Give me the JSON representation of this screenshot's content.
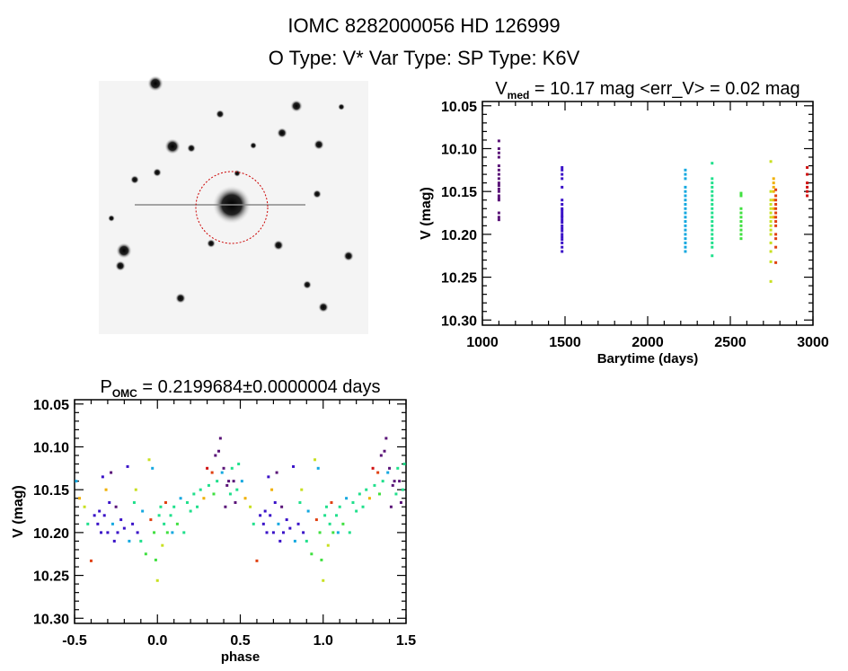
{
  "header": {
    "title": "IOMC 8282000056    HD 126999",
    "subtitle": "O Type: V*   Var Type:    SP Type: K6V"
  },
  "chart_data": [
    {
      "type": "scatter",
      "title_main": "V",
      "title_sub": "med",
      "title_rest": " = 10.17 mag <err_V> = 0.02 mag",
      "xlabel": "Barytime (days)",
      "ylabel": "V (mag)",
      "xlim": [
        1000,
        3000
      ],
      "ylim": [
        10.045,
        10.306
      ],
      "y_inverted": true,
      "xticks": [
        "1000",
        "1500",
        "2000",
        "2500",
        "3000"
      ],
      "yticks": [
        "10.05",
        "10.10",
        "10.15",
        "10.20",
        "10.25",
        "10.30"
      ],
      "groups": [
        {
          "x": 1100,
          "color": "#5a1478",
          "values": [
            10.091,
            10.1,
            10.105,
            10.11,
            10.12,
            10.125,
            10.13,
            10.135,
            10.14,
            10.143,
            10.147,
            10.15,
            10.155,
            10.158,
            10.16,
            10.175,
            10.18,
            10.183
          ]
        },
        {
          "x": 1482,
          "color": "#3a12c8",
          "values": [
            10.122,
            10.125,
            10.13,
            10.135,
            10.145,
            10.16,
            10.165,
            10.17,
            10.172,
            10.175,
            10.178,
            10.18,
            10.183,
            10.186,
            10.19,
            10.193,
            10.196,
            10.2,
            10.203,
            10.206,
            10.21,
            10.215,
            10.22
          ]
        },
        {
          "x": 2228,
          "color": "#14a8e0",
          "values": [
            10.125,
            10.13,
            10.135,
            10.145,
            10.15,
            10.155,
            10.16,
            10.165,
            10.17,
            10.175,
            10.18,
            10.185,
            10.19,
            10.195,
            10.2,
            10.205,
            10.21,
            10.215,
            10.22
          ]
        },
        {
          "x": 2390,
          "color": "#20e08c",
          "values": [
            10.117,
            10.135,
            10.14,
            10.145,
            10.15,
            10.155,
            10.16,
            10.165,
            10.17,
            10.175,
            10.18,
            10.185,
            10.19,
            10.195,
            10.2,
            10.205,
            10.21,
            10.215,
            10.225
          ]
        },
        {
          "x": 2565,
          "color": "#40e040",
          "values": [
            10.152,
            10.155,
            10.17,
            10.175,
            10.18,
            10.185,
            10.19,
            10.195,
            10.2,
            10.205
          ]
        },
        {
          "x": 2745,
          "color": "#c8e020",
          "values": [
            10.115,
            10.15,
            10.16,
            10.165,
            10.17,
            10.175,
            10.18,
            10.185,
            10.19,
            10.195,
            10.2,
            10.21,
            10.22,
            10.232,
            10.255
          ]
        },
        {
          "x": 2762,
          "color": "#f0b000",
          "values": [
            10.135,
            10.14,
            10.145,
            10.15,
            10.16,
            10.17,
            10.18
          ]
        },
        {
          "x": 2775,
          "color": "#e04010",
          "values": [
            10.148,
            10.155,
            10.16,
            10.165,
            10.17,
            10.175,
            10.18,
            10.185,
            10.19,
            10.2,
            10.205,
            10.215,
            10.233
          ]
        },
        {
          "x": 2965,
          "color": "#d01010",
          "values": [
            10.122,
            10.13,
            10.14,
            10.145,
            10.15,
            10.155
          ]
        }
      ]
    },
    {
      "type": "scatter",
      "title_main": "P",
      "title_sub": "OMC",
      "title_rest": " = 0.2199684±0.0000004 days",
      "xlabel": "phase",
      "ylabel": "V (mag)",
      "xlim": [
        -0.5,
        1.5
      ],
      "ylim": [
        10.045,
        10.306
      ],
      "y_inverted": true,
      "xticks": [
        "-0.5",
        "0.0",
        "0.5",
        "1.0",
        "1.5"
      ],
      "yticks": [
        "10.05",
        "10.10",
        "10.15",
        "10.20",
        "10.25",
        "10.30"
      ],
      "repeat_period": 1,
      "points": [
        [
          -0.49,
          10.14,
          2
        ],
        [
          -0.47,
          10.16,
          6
        ],
        [
          -0.44,
          10.17,
          5
        ],
        [
          -0.42,
          10.19,
          3
        ],
        [
          -0.4,
          10.233,
          7
        ],
        [
          -0.38,
          10.18,
          1
        ],
        [
          -0.36,
          10.19,
          1
        ],
        [
          -0.35,
          10.175,
          1
        ],
        [
          -0.34,
          10.2,
          1
        ],
        [
          -0.33,
          10.135,
          1
        ],
        [
          -0.32,
          10.18,
          1
        ],
        [
          -0.31,
          10.15,
          6
        ],
        [
          -0.3,
          10.2,
          1
        ],
        [
          -0.29,
          10.165,
          1
        ],
        [
          -0.28,
          10.13,
          0
        ],
        [
          -0.27,
          10.19,
          2
        ],
        [
          -0.26,
          10.21,
          1
        ],
        [
          -0.25,
          10.17,
          0
        ],
        [
          -0.24,
          10.2,
          1
        ],
        [
          -0.22,
          10.185,
          1
        ],
        [
          -0.2,
          10.195,
          1
        ],
        [
          -0.18,
          10.123,
          1
        ],
        [
          -0.17,
          10.21,
          2
        ],
        [
          -0.15,
          10.19,
          1
        ],
        [
          -0.14,
          10.165,
          3
        ],
        [
          -0.13,
          10.15,
          5
        ],
        [
          -0.12,
          10.2,
          1
        ],
        [
          -0.1,
          10.21,
          3
        ],
        [
          -0.09,
          10.175,
          2
        ],
        [
          -0.07,
          10.225,
          4
        ],
        [
          -0.05,
          10.115,
          5
        ],
        [
          -0.04,
          10.185,
          7
        ],
        [
          -0.03,
          10.125,
          2
        ],
        [
          -0.02,
          10.2,
          4
        ],
        [
          -0.01,
          10.232,
          4
        ],
        [
          0.0,
          10.256,
          5
        ],
        [
          0.01,
          10.18,
          3
        ],
        [
          0.02,
          10.17,
          3
        ],
        [
          0.03,
          10.215,
          5
        ],
        [
          0.04,
          10.19,
          3
        ],
        [
          0.05,
          10.165,
          7
        ],
        [
          0.06,
          10.2,
          4
        ],
        [
          0.08,
          10.18,
          3
        ],
        [
          0.09,
          10.2,
          2
        ],
        [
          0.1,
          10.17,
          3
        ],
        [
          0.12,
          10.19,
          4
        ],
        [
          0.14,
          10.16,
          2
        ],
        [
          0.16,
          10.2,
          3
        ],
        [
          0.18,
          10.165,
          3
        ],
        [
          0.2,
          10.175,
          3
        ],
        [
          0.22,
          10.155,
          3
        ],
        [
          0.24,
          10.17,
          3
        ],
        [
          0.26,
          10.15,
          3
        ],
        [
          0.28,
          10.16,
          6
        ],
        [
          0.3,
          10.125,
          8
        ],
        [
          0.31,
          10.145,
          3
        ],
        [
          0.33,
          10.13,
          7
        ],
        [
          0.34,
          10.155,
          4
        ],
        [
          0.35,
          10.11,
          0
        ],
        [
          0.36,
          10.14,
          3
        ],
        [
          0.37,
          10.105,
          0
        ],
        [
          0.38,
          10.09,
          0
        ],
        [
          0.39,
          10.13,
          2
        ],
        [
          0.4,
          10.125,
          0
        ],
        [
          0.41,
          10.17,
          0
        ],
        [
          0.42,
          10.145,
          0
        ],
        [
          0.43,
          10.14,
          0
        ],
        [
          0.44,
          10.155,
          3
        ],
        [
          0.45,
          10.125,
          3
        ],
        [
          0.46,
          10.14,
          0
        ],
        [
          0.47,
          10.165,
          0
        ],
        [
          0.48,
          10.15,
          3
        ],
        [
          0.49,
          10.12,
          3
        ]
      ]
    }
  ]
}
